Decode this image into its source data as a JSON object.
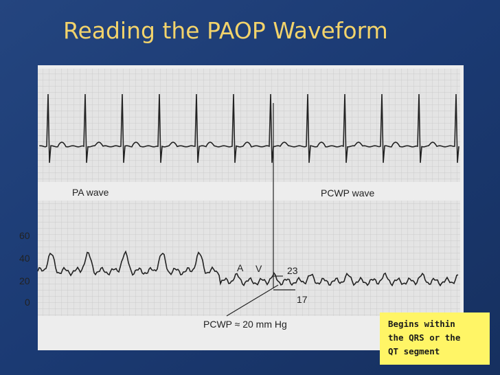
{
  "header": {
    "title": "Reading the PAOP Waveform"
  },
  "figure": {
    "upper_label_left": "PA wave",
    "upper_label_right": "PCWP wave",
    "scale_labels": [
      60,
      40,
      20,
      0
    ],
    "wave_labels": {
      "a": "A",
      "v": "V",
      "high": "23",
      "low": "17"
    },
    "caption": "PCWP ≈ 20 mm Hg"
  },
  "callout": {
    "lines": [
      "Begins within",
      "the QRS or the",
      "QT segment"
    ]
  }
}
